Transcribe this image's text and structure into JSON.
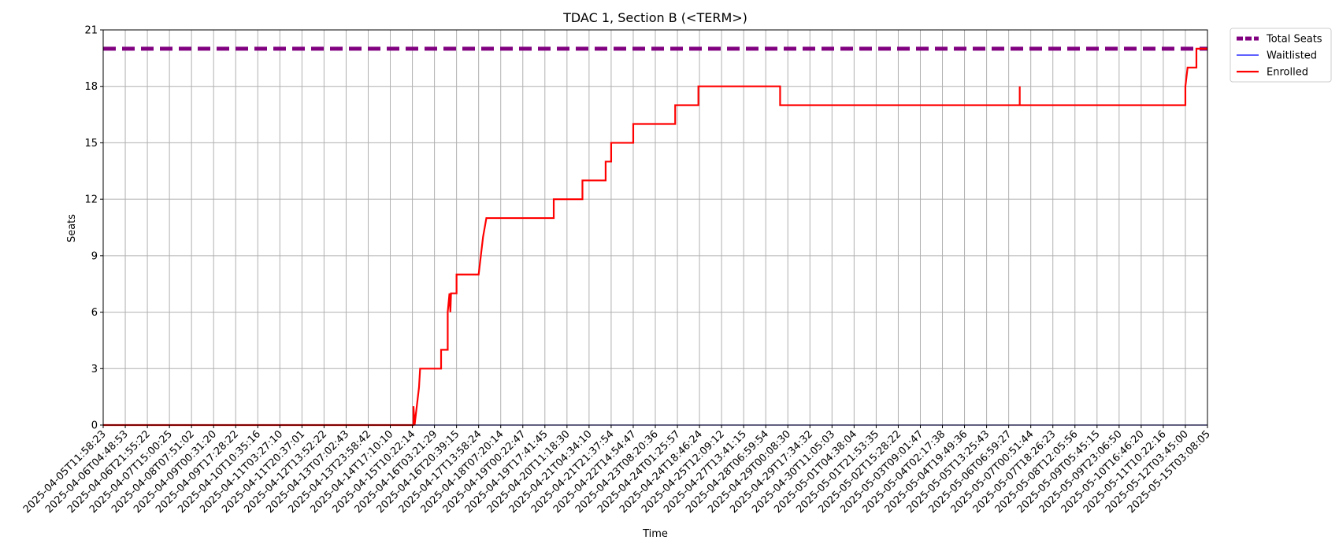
{
  "chart_data": {
    "type": "line",
    "title": "TDAC 1, Section B (<TERM>)",
    "xlabel": "Time",
    "ylabel": "Seats",
    "ylim": [
      0,
      21
    ],
    "yticks": [
      0,
      3,
      6,
      9,
      12,
      15,
      18,
      21
    ],
    "grid": true,
    "legend_placement": "outside-top-right",
    "x_ticks": [
      "2025-04-05T11:58:23",
      "2025-04-06T04:48:53",
      "2025-04-06T21:55:22",
      "2025-04-07T15:00:25",
      "2025-04-08T07:51:02",
      "2025-04-09T00:31:20",
      "2025-04-09T17:28:22",
      "2025-04-10T10:35:16",
      "2025-04-11T03:27:10",
      "2025-04-11T20:37:01",
      "2025-04-12T13:52:22",
      "2025-04-13T07:02:43",
      "2025-04-13T23:58:42",
      "2025-04-14T17:10:10",
      "2025-04-15T10:22:14",
      "2025-04-16T03:21:29",
      "2025-04-16T20:39:15",
      "2025-04-17T13:58:24",
      "2025-04-18T07:20:14",
      "2025-04-19T00:22:47",
      "2025-04-19T17:41:45",
      "2025-04-20T11:18:30",
      "2025-04-21T04:34:10",
      "2025-04-21T21:37:54",
      "2025-04-22T14:54:47",
      "2025-04-23T08:20:36",
      "2025-04-24T01:25:57",
      "2025-04-24T18:46:24",
      "2025-04-25T12:09:12",
      "2025-04-27T13:41:15",
      "2025-04-28T06:59:54",
      "2025-04-29T00:08:30",
      "2025-04-29T17:34:32",
      "2025-04-30T11:05:03",
      "2025-05-01T04:38:04",
      "2025-05-01T21:53:35",
      "2025-05-02T15:28:22",
      "2025-05-03T09:01:47",
      "2025-05-04T02:17:38",
      "2025-05-04T19:49:36",
      "2025-05-05T13:25:43",
      "2025-05-06T06:59:27",
      "2025-05-07T00:51:44",
      "2025-05-07T18:26:23",
      "2025-05-08T12:05:56",
      "2025-05-09T05:45:15",
      "2025-05-09T23:06:50",
      "2025-05-10T16:46:20",
      "2025-05-11T10:22:16",
      "2025-05-12T03:45:00",
      "2025-05-15T03:08:05"
    ],
    "series": [
      {
        "name": "Total Seats",
        "color": "#800080",
        "style": "dashed",
        "points": [
          [
            0,
            20
          ],
          [
            50,
            20
          ]
        ]
      },
      {
        "name": "Waitlisted",
        "color": "#0000ff",
        "style": "solid",
        "points": [
          [
            0,
            0
          ],
          [
            50,
            0
          ]
        ]
      },
      {
        "name": "Enrolled",
        "color": "#ff0000",
        "style": "step",
        "points": [
          [
            0,
            0
          ],
          [
            14.05,
            0
          ],
          [
            14.05,
            1
          ],
          [
            14.1,
            0
          ],
          [
            14.2,
            1
          ],
          [
            14.3,
            2
          ],
          [
            14.35,
            3
          ],
          [
            15.3,
            3
          ],
          [
            15.3,
            4
          ],
          [
            15.6,
            4
          ],
          [
            15.6,
            6
          ],
          [
            15.68,
            7
          ],
          [
            15.72,
            6
          ],
          [
            15.75,
            7
          ],
          [
            16.0,
            7
          ],
          [
            16.0,
            8
          ],
          [
            17.0,
            8
          ],
          [
            17.1,
            9
          ],
          [
            17.2,
            10
          ],
          [
            17.35,
            11
          ],
          [
            20.4,
            11
          ],
          [
            20.4,
            12
          ],
          [
            21.7,
            12
          ],
          [
            21.7,
            13
          ],
          [
            22.75,
            13
          ],
          [
            22.75,
            14
          ],
          [
            23.0,
            14
          ],
          [
            23.0,
            15
          ],
          [
            24.0,
            15
          ],
          [
            24.0,
            16
          ],
          [
            25.9,
            16
          ],
          [
            25.9,
            17
          ],
          [
            26.95,
            17
          ],
          [
            26.95,
            18
          ],
          [
            30.65,
            18
          ],
          [
            30.65,
            17
          ],
          [
            41.5,
            17
          ],
          [
            41.5,
            18
          ],
          [
            41.5,
            17
          ],
          [
            49.0,
            17
          ],
          [
            49.0,
            18
          ],
          [
            49.1,
            19
          ],
          [
            49.5,
            19
          ],
          [
            49.5,
            20
          ],
          [
            50,
            20
          ]
        ]
      }
    ]
  }
}
